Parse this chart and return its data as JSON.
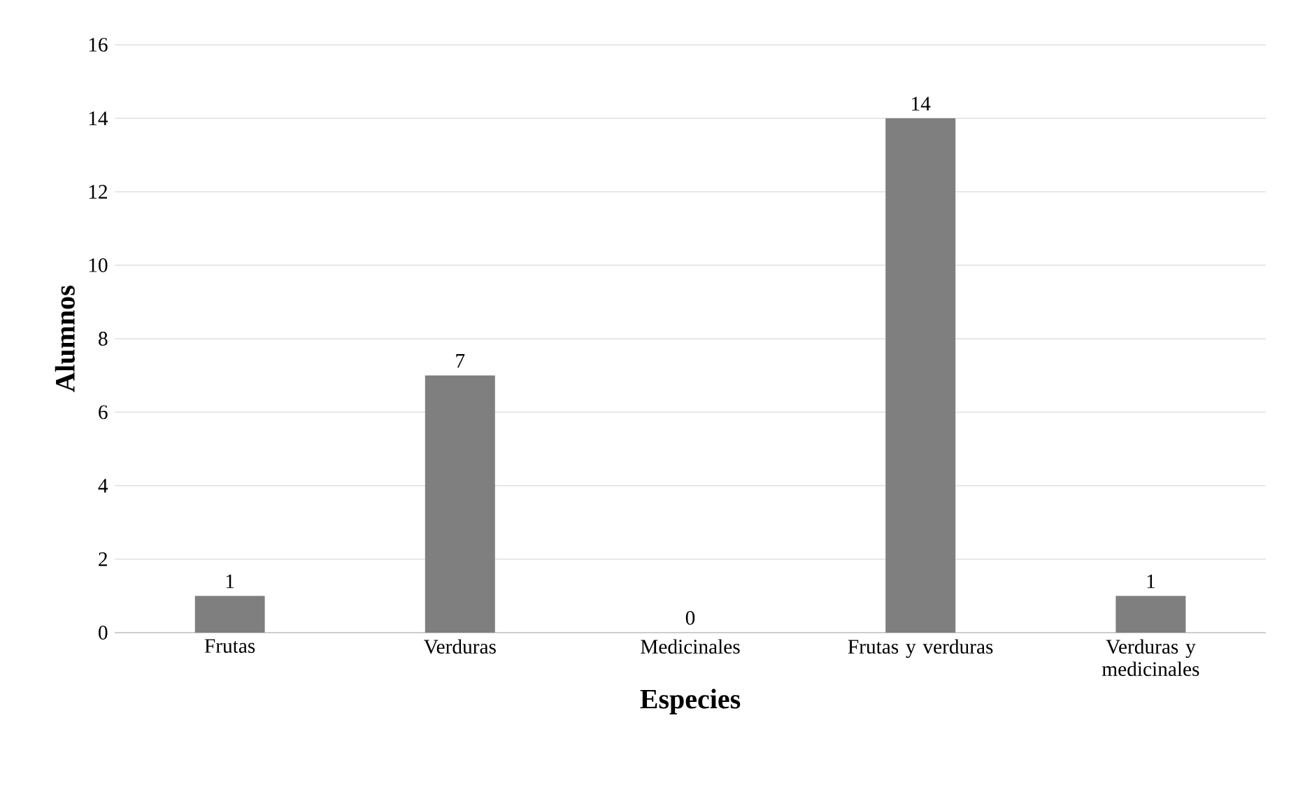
{
  "chart_data": {
    "type": "bar",
    "xlabel": "Especies",
    "ylabel": "Alumnos",
    "categories": [
      "Frutas",
      "Verduras",
      "Medicinales",
      "Frutas y verduras",
      "Verduras y medicinales"
    ],
    "values": [
      1,
      7,
      0,
      14,
      1
    ],
    "color": "#7f7f7f",
    "ylim": [
      0,
      16
    ],
    "yticks": [
      0,
      2,
      4,
      6,
      8,
      10,
      12,
      14,
      16
    ],
    "grid": "y",
    "data_labels": true
  }
}
